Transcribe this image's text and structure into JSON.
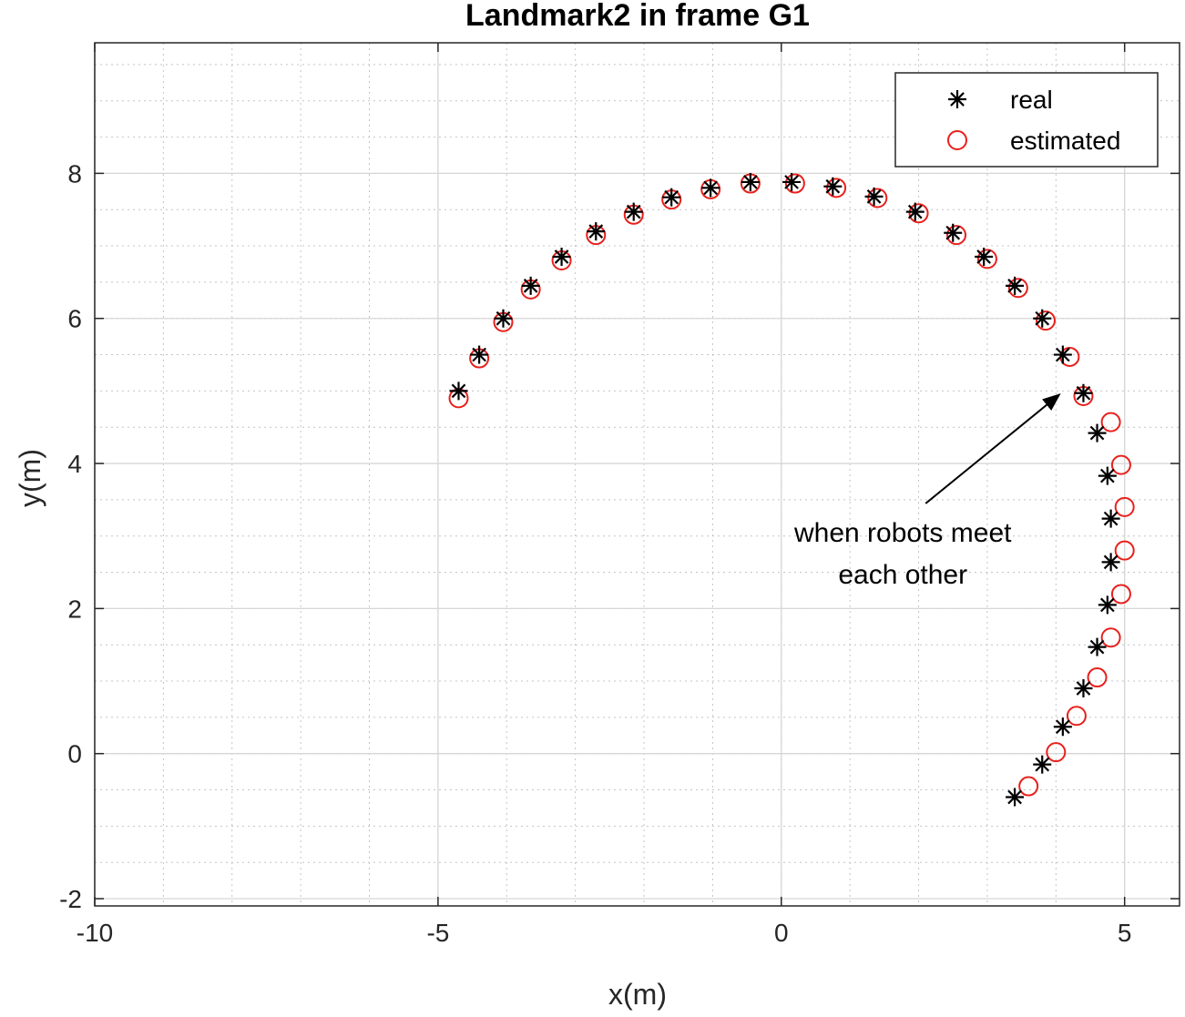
{
  "chart_data": {
    "type": "scatter",
    "title": "Landmark2 in frame G1",
    "xlabel": "x(m)",
    "ylabel": "y(m)",
    "xlim": [
      -10,
      5.8
    ],
    "ylim": [
      -2.1,
      9.8
    ],
    "xticks": [
      -10,
      -5,
      0,
      5
    ],
    "yticks": [
      -2,
      0,
      2,
      4,
      6,
      8
    ],
    "grid": true,
    "minor_grid": true,
    "legend_position": "top-right",
    "series": [
      {
        "name": "real",
        "marker": "asterisk",
        "color": "#000000",
        "points": [
          [
            -4.7,
            5.0
          ],
          [
            -4.4,
            5.5
          ],
          [
            -4.05,
            6.0
          ],
          [
            -3.65,
            6.45
          ],
          [
            -3.2,
            6.85
          ],
          [
            -2.7,
            7.2
          ],
          [
            -2.15,
            7.47
          ],
          [
            -1.6,
            7.67
          ],
          [
            -1.03,
            7.8
          ],
          [
            -0.45,
            7.88
          ],
          [
            0.15,
            7.88
          ],
          [
            0.75,
            7.82
          ],
          [
            1.35,
            7.68
          ],
          [
            1.95,
            7.47
          ],
          [
            2.5,
            7.18
          ],
          [
            2.95,
            6.85
          ],
          [
            3.4,
            6.45
          ],
          [
            3.8,
            6.0
          ],
          [
            4.1,
            5.5
          ],
          [
            4.4,
            4.97
          ],
          [
            4.6,
            4.42
          ],
          [
            4.75,
            3.83
          ],
          [
            4.8,
            3.24
          ],
          [
            4.8,
            2.64
          ],
          [
            4.75,
            2.05
          ],
          [
            4.6,
            1.47
          ],
          [
            4.4,
            0.9
          ],
          [
            4.1,
            0.37
          ],
          [
            3.8,
            -0.15
          ],
          [
            3.4,
            -0.6
          ]
        ]
      },
      {
        "name": "estimated",
        "marker": "circle",
        "color": "#e8201c",
        "points": [
          [
            -4.7,
            4.9
          ],
          [
            -4.4,
            5.45
          ],
          [
            -4.05,
            5.95
          ],
          [
            -3.65,
            6.4
          ],
          [
            -3.2,
            6.8
          ],
          [
            -2.7,
            7.15
          ],
          [
            -2.15,
            7.43
          ],
          [
            -1.6,
            7.64
          ],
          [
            -1.03,
            7.78
          ],
          [
            -0.45,
            7.86
          ],
          [
            0.2,
            7.86
          ],
          [
            0.8,
            7.8
          ],
          [
            1.4,
            7.66
          ],
          [
            2.0,
            7.45
          ],
          [
            2.55,
            7.15
          ],
          [
            3.0,
            6.82
          ],
          [
            3.45,
            6.42
          ],
          [
            3.85,
            5.97
          ],
          [
            4.2,
            5.47
          ],
          [
            4.4,
            4.93
          ],
          [
            4.8,
            4.57
          ],
          [
            4.95,
            3.98
          ],
          [
            5.0,
            3.4
          ],
          [
            5.0,
            2.8
          ],
          [
            4.95,
            2.2
          ],
          [
            4.8,
            1.6
          ],
          [
            4.6,
            1.05
          ],
          [
            4.3,
            0.52
          ],
          [
            4.0,
            0.02
          ],
          [
            3.6,
            -0.45
          ]
        ]
      }
    ],
    "annotations": [
      {
        "lines": [
          "when robots meet",
          "each other"
        ],
        "arrow_from": [
          2.5,
          3.7
        ],
        "arrow_to": [
          4.05,
          4.95
        ]
      }
    ]
  }
}
